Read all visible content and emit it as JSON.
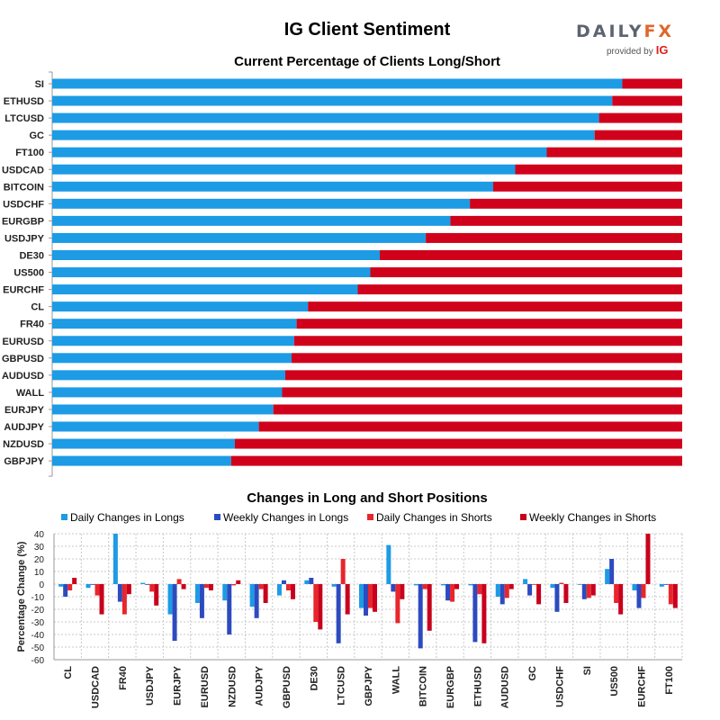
{
  "header": {
    "title": "IG Client Sentiment",
    "logo_brand_main": "DAILY",
    "logo_brand_accent": "FX",
    "logo_provided_by": "provided by",
    "logo_ig": "IG"
  },
  "colors": {
    "long": "#1d9be5",
    "short": "#d0021b",
    "daily_long": "#1d9be5",
    "weekly_long": "#2d4bbf",
    "daily_short": "#e8262b",
    "weekly_short": "#c8001c"
  },
  "chart_data": [
    {
      "type": "bar",
      "orientation": "horizontal",
      "stacked": true,
      "title": "Current Percentage of Clients Long/Short",
      "categories": [
        "SI",
        "ETHUSD",
        "LTCUSD",
        "GC",
        "FT100",
        "USDCAD",
        "BITCOIN",
        "USDCHF",
        "EURGBP",
        "USDJPY",
        "DE30",
        "US500",
        "EURCHF",
        "CL",
        "FR40",
        "EURUSD",
        "GBPUSD",
        "AUDUSD",
        "WALL",
        "EURJPY",
        "AUDJPY",
        "NZDUSD",
        "GBPJPY"
      ],
      "series": [
        {
          "values": [
            90.5,
            88.9,
            86.8,
            86.1,
            78.5,
            73.5,
            70.0,
            66.3,
            63.2,
            59.3,
            52.0,
            50.5,
            48.5,
            40.6,
            38.8,
            38.4,
            38.0,
            37.0,
            36.5,
            35.1,
            32.8,
            29.0,
            28.4
          ]
        },
        {
          "values": [
            9.5,
            11.1,
            13.2,
            13.9,
            21.5,
            26.5,
            30.0,
            33.7,
            36.8,
            40.7,
            48.0,
            49.5,
            51.5,
            59.4,
            61.2,
            61.6,
            62.0,
            63.0,
            63.5,
            64.9,
            67.2,
            71.0,
            71.6
          ]
        }
      ],
      "xlim": [
        0,
        100
      ]
    },
    {
      "type": "bar",
      "title": "Changes in Long and Short Positions",
      "ylabel": "Percentage Change (%)",
      "ylim": [
        -60,
        40
      ],
      "yticks": [
        40,
        30,
        20,
        10,
        0,
        -10,
        -20,
        -30,
        -40,
        -50,
        -60
      ],
      "grid": true,
      "legend": "top",
      "categories": [
        "CL",
        "USDCAD",
        "FR40",
        "USDJPY",
        "EURJPY",
        "EURUSD",
        "NZDUSD",
        "AUDJPY",
        "GBPUSD",
        "DE30",
        "LTCUSD",
        "GBPJPY",
        "WALL",
        "BITCOIN",
        "EURGBP",
        "ETHUSD",
        "AUDUSD",
        "GC",
        "USDCHF",
        "SI",
        "US500",
        "EURCHF",
        "FT100"
      ],
      "series": [
        {
          "name": "Daily Changes in Longs",
          "values": [
            -2,
            -3,
            41,
            1,
            -24,
            -15,
            -13,
            -18,
            -9,
            3,
            -2,
            -19,
            31,
            -1,
            -1,
            -1,
            -10,
            4,
            -3,
            0,
            12,
            -5,
            -2
          ]
        },
        {
          "name": "Weekly Changes in Longs",
          "values": [
            -10,
            0,
            -14,
            0,
            -45,
            -27,
            -40,
            -27,
            3,
            5,
            -47,
            -25,
            -6,
            -51,
            -13,
            -46,
            -16,
            -9,
            -22,
            -12,
            20,
            -19,
            0
          ]
        },
        {
          "name": "Daily Changes in Shorts",
          "values": [
            -5,
            -9,
            -24,
            -6,
            4,
            -3,
            -1,
            -4,
            -5,
            -30,
            20,
            -19,
            -31,
            -4,
            -14,
            -8,
            -11,
            0,
            1,
            -11,
            -15,
            -11,
            -16
          ]
        },
        {
          "name": "Weekly Changes in Shorts",
          "values": [
            5,
            -24,
            -8,
            -17,
            -4,
            -5,
            3,
            -15,
            -12,
            -36,
            -24,
            -22,
            -12,
            -37,
            -4,
            -47,
            -4,
            -16,
            -15,
            -9,
            -24,
            40,
            -19
          ]
        }
      ]
    }
  ]
}
